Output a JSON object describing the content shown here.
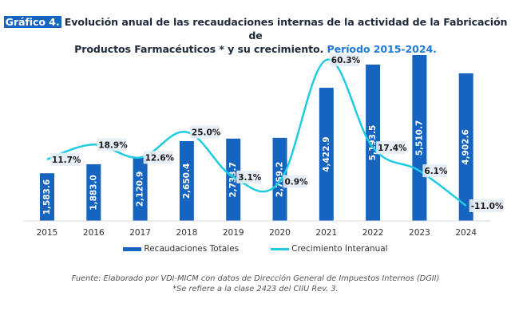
{
  "title": {
    "tag": "Gráfico 4.",
    "line1": " Evolución anual de las recaudaciones internas de la actividad de la Fabricación de",
    "line2": "Productos Farmacéuticos * y su crecimiento.",
    "period": " Período 2015-2024."
  },
  "colors": {
    "bar": "#1565c0",
    "line": "#1ecbe1",
    "label_bg": "#e6ecf5"
  },
  "chart_data": {
    "type": "bar",
    "title": "Evolución anual de las recaudaciones internas de la actividad de la Fabricación de Productos Farmacéuticos * y su crecimiento. Período 2015-2024.",
    "xlabel": "",
    "ylabel": "",
    "categories": [
      "2015",
      "2016",
      "2017",
      "2018",
      "2019",
      "2020",
      "2021",
      "2022",
      "2023",
      "2024"
    ],
    "series": [
      {
        "name": "Recaudaciones Totales",
        "type": "bar",
        "values": [
          1583.6,
          1883.0,
          2120.9,
          2650.4,
          2733.7,
          2759.2,
          4422.9,
          5193.5,
          5510.7,
          4902.6
        ],
        "labels": [
          "1,583.6",
          "1,883.0",
          "2,120.9",
          "2,650.4",
          "2,733.7",
          "2,759.2",
          "4,422.9",
          "5,193.5",
          "5,510.7",
          "4,902.6"
        ]
      },
      {
        "name": "Crecimiento Interanual",
        "type": "line",
        "values": [
          11.7,
          18.9,
          12.6,
          25.0,
          3.1,
          0.9,
          60.3,
          17.4,
          6.1,
          -11.0
        ],
        "labels": [
          "11.7%",
          "18.9%",
          "12.6%",
          "25.0%",
          "3.1%",
          "0.9%",
          "60.3%",
          "17.4%",
          "6.1%",
          "-11.0%"
        ]
      }
    ],
    "grid": false,
    "legend_position": "bottom"
  },
  "legend": {
    "bar_label": "Recaudaciones Totales",
    "line_label": "Crecimiento Interanual"
  },
  "source": {
    "line1": "Fuente: Elaborado por VDI-MICM con datos de Dirección General de Impuestos Internos (DGII)",
    "line2": "*Se refiere a la clase 2423 del CIIU Rev. 3."
  }
}
